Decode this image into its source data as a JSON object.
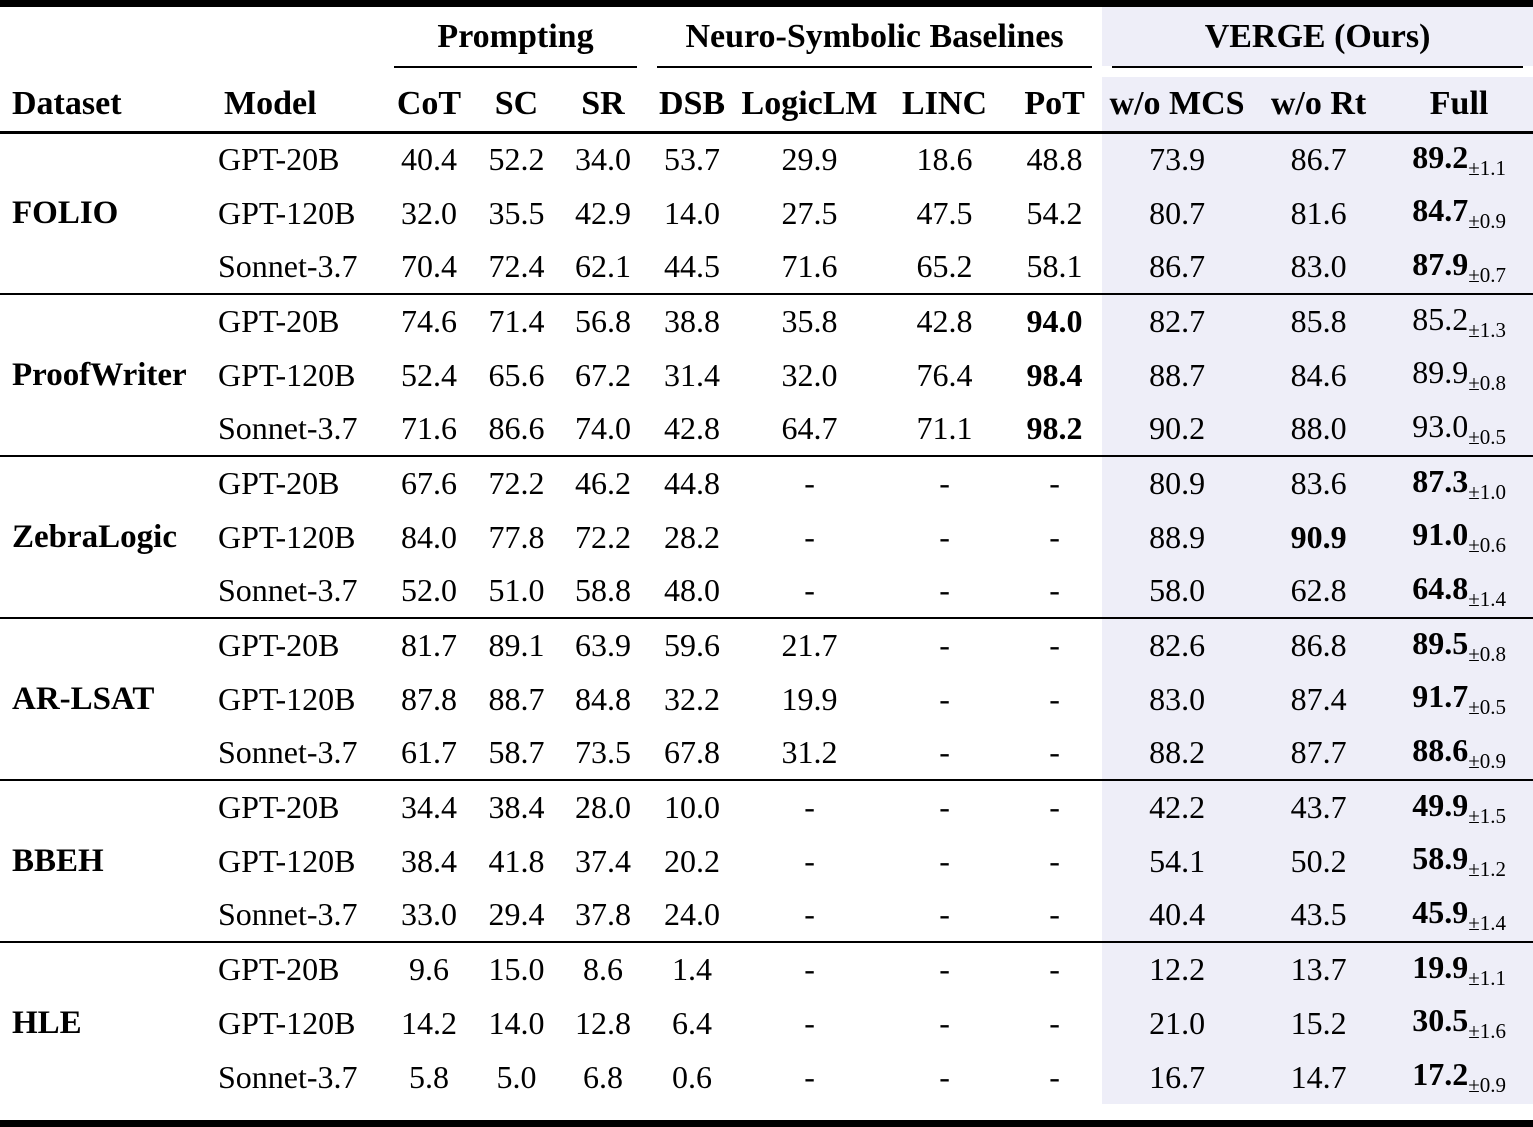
{
  "page": {
    "type": "paper-results-table"
  },
  "colors": {
    "highlight": "#eeeef8",
    "rule": "#000000",
    "text": "#000000",
    "background": "#ffffff"
  },
  "table": {
    "dataset_label": "Dataset",
    "model_label": "Model",
    "groups_header": [
      {
        "label": "Prompting",
        "span": 3
      },
      {
        "label": "Neuro-Symbolic Baselines",
        "span": 4
      },
      {
        "label": "VERGE (Ours)",
        "span": 3
      }
    ],
    "columns": [
      "CoT",
      "SC",
      "SR",
      "DSB",
      "LogicLM",
      "LINC",
      "PoT",
      "w/o MCS",
      "w/o Rt",
      "Full"
    ],
    "body": [
      {
        "dataset": "FOLIO",
        "rows": [
          {
            "model": "GPT-20B",
            "values": [
              "40.4",
              "52.2",
              "34.0",
              "53.7",
              "29.9",
              "18.6",
              "48.8",
              "73.9",
              "86.7"
            ],
            "bold_idx": [],
            "full": "89.2",
            "full_pm": "±1.1",
            "full_bold": true
          },
          {
            "model": "GPT-120B",
            "values": [
              "32.0",
              "35.5",
              "42.9",
              "14.0",
              "27.5",
              "47.5",
              "54.2",
              "80.7",
              "81.6"
            ],
            "bold_idx": [],
            "full": "84.7",
            "full_pm": "±0.9",
            "full_bold": true
          },
          {
            "model": "Sonnet-3.7",
            "values": [
              "70.4",
              "72.4",
              "62.1",
              "44.5",
              "71.6",
              "65.2",
              "58.1",
              "86.7",
              "83.0"
            ],
            "bold_idx": [],
            "full": "87.9",
            "full_pm": "±0.7",
            "full_bold": true
          }
        ]
      },
      {
        "dataset": "ProofWriter",
        "rows": [
          {
            "model": "GPT-20B",
            "values": [
              "74.6",
              "71.4",
              "56.8",
              "38.8",
              "35.8",
              "42.8",
              "94.0",
              "82.7",
              "85.8"
            ],
            "bold_idx": [
              6
            ],
            "full": "85.2",
            "full_pm": "±1.3",
            "full_bold": false
          },
          {
            "model": "GPT-120B",
            "values": [
              "52.4",
              "65.6",
              "67.2",
              "31.4",
              "32.0",
              "76.4",
              "98.4",
              "88.7",
              "84.6"
            ],
            "bold_idx": [
              6
            ],
            "full": "89.9",
            "full_pm": "±0.8",
            "full_bold": false
          },
          {
            "model": "Sonnet-3.7",
            "values": [
              "71.6",
              "86.6",
              "74.0",
              "42.8",
              "64.7",
              "71.1",
              "98.2",
              "90.2",
              "88.0"
            ],
            "bold_idx": [
              6
            ],
            "full": "93.0",
            "full_pm": "±0.5",
            "full_bold": false
          }
        ]
      },
      {
        "dataset": "ZebraLogic",
        "rows": [
          {
            "model": "GPT-20B",
            "values": [
              "67.6",
              "72.2",
              "46.2",
              "44.8",
              "-",
              "-",
              "-",
              "80.9",
              "83.6"
            ],
            "bold_idx": [],
            "full": "87.3",
            "full_pm": "±1.0",
            "full_bold": true
          },
          {
            "model": "GPT-120B",
            "values": [
              "84.0",
              "77.8",
              "72.2",
              "28.2",
              "-",
              "-",
              "-",
              "88.9",
              "90.9"
            ],
            "bold_idx": [
              8
            ],
            "full": "91.0",
            "full_pm": "±0.6",
            "full_bold": true
          },
          {
            "model": "Sonnet-3.7",
            "values": [
              "52.0",
              "51.0",
              "58.8",
              "48.0",
              "-",
              "-",
              "-",
              "58.0",
              "62.8"
            ],
            "bold_idx": [],
            "full": "64.8",
            "full_pm": "±1.4",
            "full_bold": true
          }
        ]
      },
      {
        "dataset": "AR-LSAT",
        "rows": [
          {
            "model": "GPT-20B",
            "values": [
              "81.7",
              "89.1",
              "63.9",
              "59.6",
              "21.7",
              "-",
              "-",
              "82.6",
              "86.8"
            ],
            "bold_idx": [],
            "full": "89.5",
            "full_pm": "±0.8",
            "full_bold": true
          },
          {
            "model": "GPT-120B",
            "values": [
              "87.8",
              "88.7",
              "84.8",
              "32.2",
              "19.9",
              "-",
              "-",
              "83.0",
              "87.4"
            ],
            "bold_idx": [],
            "full": "91.7",
            "full_pm": "±0.5",
            "full_bold": true
          },
          {
            "model": "Sonnet-3.7",
            "values": [
              "61.7",
              "58.7",
              "73.5",
              "67.8",
              "31.2",
              "-",
              "-",
              "88.2",
              "87.7"
            ],
            "bold_idx": [],
            "full": "88.6",
            "full_pm": "±0.9",
            "full_bold": true
          }
        ]
      },
      {
        "dataset": "BBEH",
        "rows": [
          {
            "model": "GPT-20B",
            "values": [
              "34.4",
              "38.4",
              "28.0",
              "10.0",
              "-",
              "-",
              "-",
              "42.2",
              "43.7"
            ],
            "bold_idx": [],
            "full": "49.9",
            "full_pm": "±1.5",
            "full_bold": true
          },
          {
            "model": "GPT-120B",
            "values": [
              "38.4",
              "41.8",
              "37.4",
              "20.2",
              "-",
              "-",
              "-",
              "54.1",
              "50.2"
            ],
            "bold_idx": [],
            "full": "58.9",
            "full_pm": "±1.2",
            "full_bold": true
          },
          {
            "model": "Sonnet-3.7",
            "values": [
              "33.0",
              "29.4",
              "37.8",
              "24.0",
              "-",
              "-",
              "-",
              "40.4",
              "43.5"
            ],
            "bold_idx": [],
            "full": "45.9",
            "full_pm": "±1.4",
            "full_bold": true
          }
        ]
      },
      {
        "dataset": "HLE",
        "rows": [
          {
            "model": "GPT-20B",
            "values": [
              "9.6",
              "15.0",
              "8.6",
              "1.4",
              "-",
              "-",
              "-",
              "12.2",
              "13.7"
            ],
            "bold_idx": [],
            "full": "19.9",
            "full_pm": "±1.1",
            "full_bold": true
          },
          {
            "model": "GPT-120B",
            "values": [
              "14.2",
              "14.0",
              "12.8",
              "6.4",
              "-",
              "-",
              "-",
              "21.0",
              "15.2"
            ],
            "bold_idx": [],
            "full": "30.5",
            "full_pm": "±1.6",
            "full_bold": true
          },
          {
            "model": "Sonnet-3.7",
            "values": [
              "5.8",
              "5.0",
              "6.8",
              "0.6",
              "-",
              "-",
              "-",
              "16.7",
              "14.7"
            ],
            "bold_idx": [],
            "full": "17.2",
            "full_pm": "±0.9",
            "full_bold": true
          }
        ]
      }
    ]
  }
}
